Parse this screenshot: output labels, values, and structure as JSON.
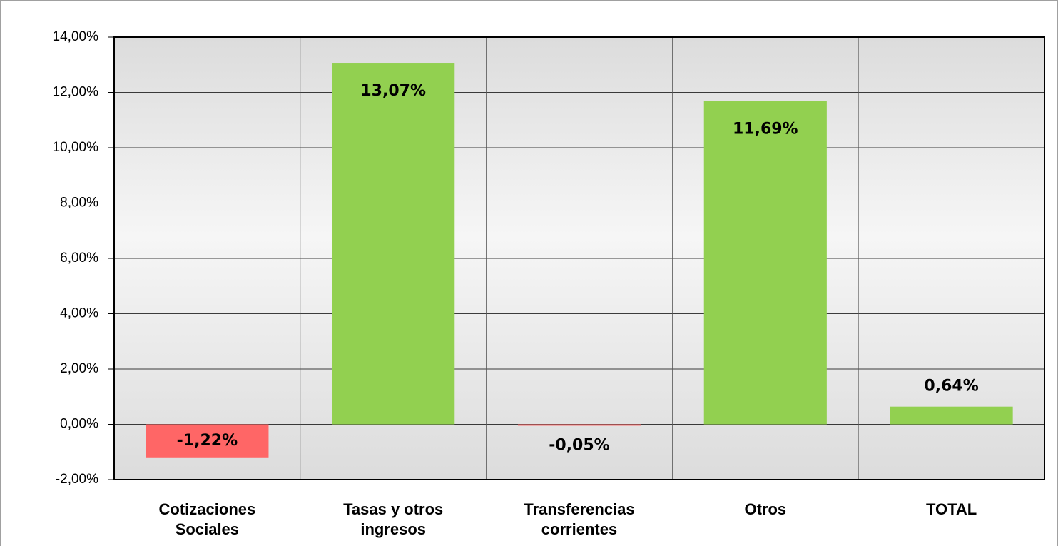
{
  "chart_data": {
    "type": "bar",
    "categories": [
      "Cotizaciones Sociales",
      "Tasas y otros ingresos",
      "Transferencias corrientes",
      "Otros",
      "TOTAL"
    ],
    "values": [
      -1.22,
      13.07,
      -0.05,
      11.69,
      0.64
    ],
    "value_labels": [
      "-1,22%",
      "13,07%",
      "-0,05%",
      "11,69%",
      "0,64%"
    ],
    "colors": [
      "#ff6666",
      "#92d050",
      "#ff6666",
      "#92d050",
      "#92d050"
    ],
    "ylim": [
      -2,
      14
    ],
    "yticks": [
      {
        "value": -2,
        "label": "-2,00%"
      },
      {
        "value": 0,
        "label": "0,00%"
      },
      {
        "value": 2,
        "label": "2,00%"
      },
      {
        "value": 4,
        "label": "4,00%"
      },
      {
        "value": 6,
        "label": "6,00%"
      },
      {
        "value": 8,
        "label": "8,00%"
      },
      {
        "value": 10,
        "label": "10,00%"
      },
      {
        "value": 12,
        "label": "12,00%"
      },
      {
        "value": 14,
        "label": "14,00%"
      }
    ],
    "grid": true
  }
}
